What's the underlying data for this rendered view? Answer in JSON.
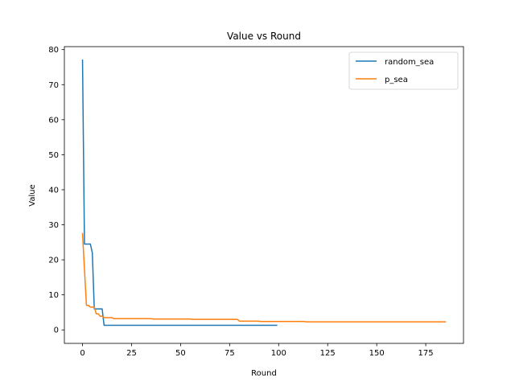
{
  "chart_data": {
    "type": "line",
    "title": "Value vs Round",
    "xlabel": "Round",
    "ylabel": "Value",
    "xlim": [
      -9.25,
      194.25
    ],
    "ylim": [
      -3.85,
      80.85
    ],
    "xticks": [
      0,
      25,
      50,
      75,
      100,
      125,
      150,
      175
    ],
    "yticks": [
      0,
      10,
      20,
      30,
      40,
      50,
      60,
      70,
      80
    ],
    "grid": false,
    "legend_position": "top-right",
    "series": [
      {
        "name": "random_sea",
        "color": "#1f77b4",
        "points": [
          [
            0,
            77.0
          ],
          [
            1,
            24.5
          ],
          [
            4,
            24.5
          ],
          [
            5,
            22.0
          ],
          [
            6,
            6.0
          ],
          [
            10,
            6.0
          ],
          [
            11,
            1.3
          ],
          [
            99,
            1.3
          ]
        ]
      },
      {
        "name": "p_sea",
        "color": "#ff7f0e",
        "points": [
          [
            0,
            27.5
          ],
          [
            2,
            7.0
          ],
          [
            3,
            7.0
          ],
          [
            4,
            6.5
          ],
          [
            6,
            6.5
          ],
          [
            7,
            4.6
          ],
          [
            8,
            4.6
          ],
          [
            9,
            3.9
          ],
          [
            10,
            3.9
          ],
          [
            11,
            3.5
          ],
          [
            15,
            3.5
          ],
          [
            16,
            3.2
          ],
          [
            35,
            3.2
          ],
          [
            36,
            3.1
          ],
          [
            55,
            3.1
          ],
          [
            56,
            3.0
          ],
          [
            79,
            3.0
          ],
          [
            80,
            2.5
          ],
          [
            90,
            2.5
          ],
          [
            91,
            2.4
          ],
          [
            113,
            2.4
          ],
          [
            114,
            2.3
          ],
          [
            185,
            2.3
          ]
        ]
      }
    ]
  }
}
